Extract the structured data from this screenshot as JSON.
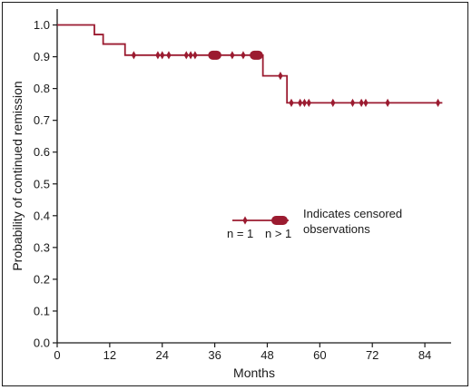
{
  "chart_data": {
    "type": "line",
    "subtype": "kaplan-meier-step",
    "xlabel": "Months",
    "ylabel": "Probability of continued remission",
    "xlim": [
      0,
      90
    ],
    "ylim": [
      0,
      1.05
    ],
    "x_ticks": [
      0,
      12,
      24,
      36,
      48,
      60,
      72,
      84
    ],
    "y_ticks": [
      "0.0",
      "0.1",
      "0.2",
      "0.3",
      "0.4",
      "0.5",
      "0.6",
      "0.7",
      "0.8",
      "0.9",
      "1.0"
    ],
    "grid": false,
    "color": "#9b1b30",
    "steps": [
      {
        "x": 0,
        "y": 1.0
      },
      {
        "x": 8.5,
        "y": 0.97
      },
      {
        "x": 10.5,
        "y": 0.94
      },
      {
        "x": 15.5,
        "y": 0.905
      },
      {
        "x": 47,
        "y": 0.84
      },
      {
        "x": 52.5,
        "y": 0.755
      },
      {
        "x": 88,
        "y": 0.755
      }
    ],
    "censored_single": [
      {
        "x": 17.5,
        "y": 0.905
      },
      {
        "x": 23,
        "y": 0.905
      },
      {
        "x": 24,
        "y": 0.905
      },
      {
        "x": 25.5,
        "y": 0.905
      },
      {
        "x": 29.5,
        "y": 0.905
      },
      {
        "x": 30.5,
        "y": 0.905
      },
      {
        "x": 31.5,
        "y": 0.905
      },
      {
        "x": 40,
        "y": 0.905
      },
      {
        "x": 42.5,
        "y": 0.905
      },
      {
        "x": 51,
        "y": 0.84
      },
      {
        "x": 53.5,
        "y": 0.755
      },
      {
        "x": 55.5,
        "y": 0.755
      },
      {
        "x": 56.5,
        "y": 0.755
      },
      {
        "x": 57.5,
        "y": 0.755
      },
      {
        "x": 63,
        "y": 0.755
      },
      {
        "x": 67.5,
        "y": 0.755
      },
      {
        "x": 69.5,
        "y": 0.755
      },
      {
        "x": 70.5,
        "y": 0.755
      },
      {
        "x": 75.5,
        "y": 0.755
      },
      {
        "x": 87,
        "y": 0.755
      }
    ],
    "censored_multiple": [
      {
        "x_start": 34.5,
        "x_end": 37.5,
        "y": 0.905
      },
      {
        "x_start": 44,
        "x_end": 47,
        "y": 0.905
      }
    ],
    "legend": {
      "text_line1": "Indicates censored",
      "text_line2": "observations",
      "single_label": "n = 1",
      "multiple_label": "n > 1",
      "placement": "center-right"
    }
  }
}
